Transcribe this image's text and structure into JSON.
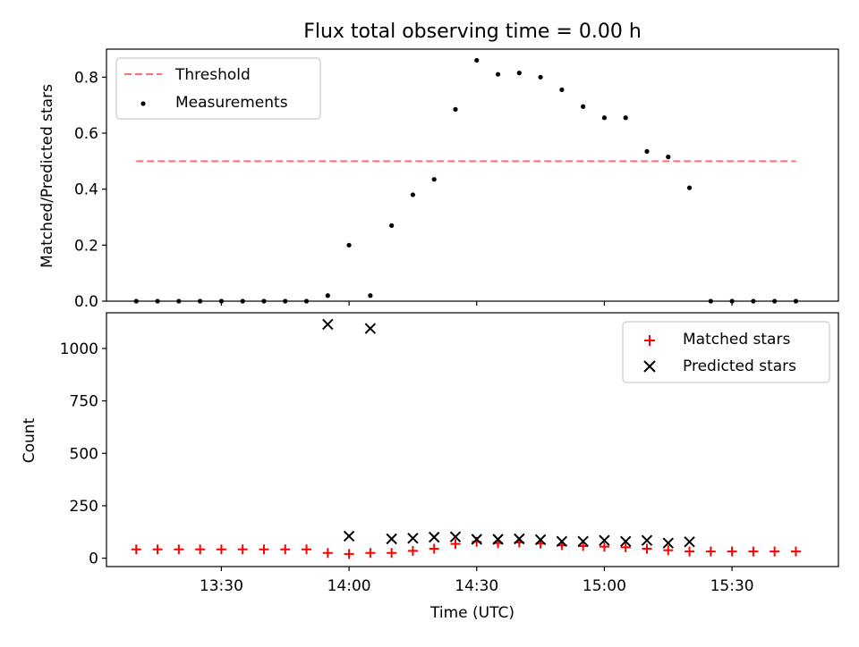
{
  "chart_data": [
    {
      "type": "scatter",
      "title": "Flux total observing time = 0.00 h",
      "ylabel": "Matched/Predicted stars",
      "xlabel": "",
      "ylim": [
        0,
        0.9
      ],
      "yticks": [
        0.0,
        0.2,
        0.4,
        0.6,
        0.8
      ],
      "ytick_labels": [
        "0.0",
        "0.2",
        "0.4",
        "0.6",
        "0.8"
      ],
      "legend_position": "top-left",
      "threshold": {
        "name": "Threshold",
        "value": 0.5,
        "x_start": "13:10",
        "x_end": "15:45",
        "color": "#ff7070",
        "style": "dashed"
      },
      "series": [
        {
          "name": "Measurements",
          "color": "#000000",
          "x": [
            "13:10",
            "13:15",
            "13:20",
            "13:25",
            "13:30",
            "13:35",
            "13:40",
            "13:45",
            "13:50",
            "13:55",
            "14:00",
            "14:05",
            "14:10",
            "14:15",
            "14:20",
            "14:25",
            "14:30",
            "14:35",
            "14:40",
            "14:45",
            "14:50",
            "14:55",
            "15:00",
            "15:05",
            "15:10",
            "15:15",
            "15:20",
            "15:25",
            "15:30",
            "15:35",
            "15:40",
            "15:45"
          ],
          "values": [
            0,
            0,
            0,
            0,
            0,
            0,
            0,
            0,
            0,
            0.02,
            0.2,
            0.02,
            0.27,
            0.38,
            0.435,
            0.685,
            0.86,
            0.81,
            0.815,
            0.8,
            0.755,
            0.695,
            0.655,
            0.655,
            0.535,
            0.515,
            0.405,
            0,
            0,
            0,
            0,
            0
          ]
        }
      ]
    },
    {
      "type": "scatter",
      "title": "",
      "xlabel": "Time (UTC)",
      "ylabel": "Count",
      "xlim": [
        "13:03",
        "15:55"
      ],
      "ylim": [
        -40,
        1170
      ],
      "xticks": [
        "13:30",
        "14:00",
        "14:30",
        "15:00",
        "15:30"
      ],
      "yticks": [
        0,
        250,
        500,
        750,
        1000
      ],
      "ytick_labels": [
        "0",
        "250",
        "500",
        "750",
        "1000"
      ],
      "legend_position": "top-right",
      "series": [
        {
          "name": "Matched stars",
          "marker": "plus",
          "color": "#ff0000",
          "x": [
            "13:10",
            "13:15",
            "13:20",
            "13:25",
            "13:30",
            "13:35",
            "13:40",
            "13:45",
            "13:50",
            "13:55",
            "14:00",
            "14:05",
            "14:10",
            "14:15",
            "14:20",
            "14:25",
            "14:30",
            "14:35",
            "14:40",
            "14:45",
            "14:50",
            "14:55",
            "15:00",
            "15:05",
            "15:10",
            "15:15",
            "15:20",
            "15:25",
            "15:30",
            "15:35",
            "15:40",
            "15:45"
          ],
          "values": [
            42,
            42,
            42,
            42,
            42,
            42,
            42,
            42,
            42,
            25,
            20,
            25,
            25,
            35,
            45,
            68,
            78,
            72,
            75,
            70,
            62,
            58,
            55,
            52,
            45,
            38,
            32,
            32,
            32,
            32,
            32,
            32
          ]
        },
        {
          "name": "Predicted stars",
          "marker": "x",
          "color": "#000000",
          "x": [
            "13:55",
            "14:00",
            "14:05",
            "14:10",
            "14:15",
            "14:20",
            "14:25",
            "14:30",
            "14:35",
            "14:40",
            "14:45",
            "14:50",
            "14:55",
            "15:00",
            "15:05",
            "15:10",
            "15:15",
            "15:20"
          ],
          "values": [
            1115,
            105,
            1095,
            92,
            95,
            100,
            102,
            90,
            90,
            92,
            88,
            80,
            80,
            85,
            80,
            85,
            72,
            78
          ]
        }
      ]
    }
  ]
}
